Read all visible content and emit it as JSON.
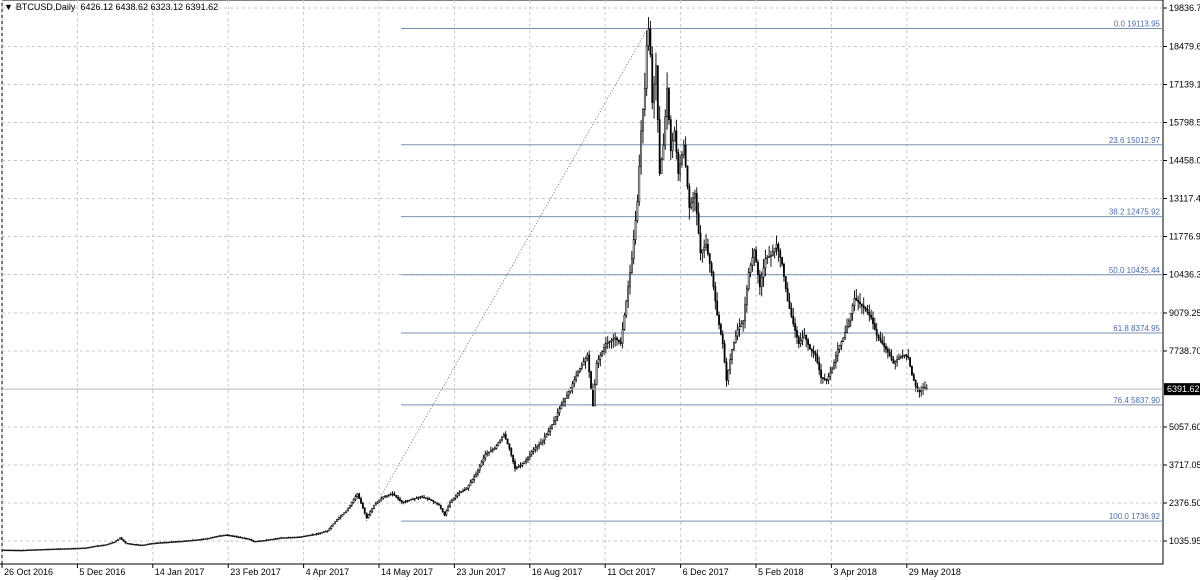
{
  "header": {
    "symbol": "BTCUSD,Daily",
    "ohlc": "6426.12 6438.62 6323.12 6391.62"
  },
  "chart_data": {
    "type": "candlestick",
    "symbol": "BTCUSD",
    "timeframe": "Daily",
    "current_price": "6391.62",
    "y_ticks": [
      "19836.75",
      "18479.65",
      "17139.10",
      "15798.55",
      "14458.00",
      "13117.45",
      "11776.90",
      "10436.35",
      "9079.25",
      "7738.70",
      "6391.62",
      "5057.60",
      "3717.05",
      "2376.50",
      "1035.95"
    ],
    "ylim": [
      500,
      20100
    ],
    "x_ticks": [
      "26 Oct 2016",
      "5 Dec 2016",
      "14 Jan 2017",
      "23 Feb 2017",
      "4 Apr 2017",
      "14 May 2017",
      "23 Jun 2017",
      "16 Aug 2017",
      "11 Oct 2017",
      "6 Dec 2017",
      "5 Feb 2018",
      "3 Apr 2018",
      "29 May 2018"
    ],
    "fib_levels": [
      {
        "label": "0.0 19113.95",
        "value": 19113.95
      },
      {
        "label": "23.6 15012.97",
        "value": 15012.97
      },
      {
        "label": "38.2 12475.92",
        "value": 12475.92
      },
      {
        "label": "50.0 10425.44",
        "value": 10425.44
      },
      {
        "label": "61.8 8374.95",
        "value": 8374.95
      },
      {
        "label": "76.4 5837.90",
        "value": 5837.9
      },
      {
        "label": "100.0 1736.92",
        "value": 1736.92
      }
    ],
    "trendline": {
      "from": [
        196,
        1736.92
      ],
      "to": [
        292,
        19113.95
      ]
    },
    "grid": true,
    "colors": {
      "fib": "#7892b4",
      "fib_text": "#4a6ea8",
      "grid": "#c8c8c8",
      "candle": "#000000",
      "price_tag_bg": "#000000",
      "price_tag_text": "#ffffff"
    },
    "price_path": [
      [
        0,
        720
      ],
      [
        10,
        710
      ],
      [
        20,
        740
      ],
      [
        30,
        760
      ],
      [
        40,
        780
      ],
      [
        45,
        800
      ],
      [
        50,
        860
      ],
      [
        55,
        900
      ],
      [
        60,
        1000
      ],
      [
        63,
        1150
      ],
      [
        66,
        960
      ],
      [
        70,
        920
      ],
      [
        75,
        890
      ],
      [
        80,
        950
      ],
      [
        85,
        980
      ],
      [
        90,
        1000
      ],
      [
        100,
        1050
      ],
      [
        110,
        1120
      ],
      [
        115,
        1200
      ],
      [
        120,
        1250
      ],
      [
        125,
        1200
      ],
      [
        128,
        1160
      ],
      [
        132,
        1110
      ],
      [
        135,
        1020
      ],
      [
        140,
        1050
      ],
      [
        150,
        1150
      ],
      [
        160,
        1180
      ],
      [
        170,
        1300
      ],
      [
        175,
        1400
      ],
      [
        180,
        1800
      ],
      [
        185,
        2100
      ],
      [
        188,
        2400
      ],
      [
        191,
        2700
      ],
      [
        194,
        2200
      ],
      [
        196,
        1850
      ],
      [
        200,
        2300
      ],
      [
        205,
        2600
      ],
      [
        210,
        2700
      ],
      [
        215,
        2400
      ],
      [
        220,
        2500
      ],
      [
        225,
        2600
      ],
      [
        230,
        2500
      ],
      [
        235,
        2300
      ],
      [
        238,
        1950
      ],
      [
        241,
        2400
      ],
      [
        245,
        2700
      ],
      [
        250,
        2900
      ],
      [
        255,
        3400
      ],
      [
        260,
        4100
      ],
      [
        265,
        4300
      ],
      [
        270,
        4800
      ],
      [
        273,
        4300
      ],
      [
        276,
        3600
      ],
      [
        279,
        3700
      ],
      [
        282,
        3900
      ],
      [
        285,
        4200
      ],
      [
        290,
        4500
      ],
      [
        295,
        5000
      ],
      [
        300,
        5700
      ],
      [
        305,
        6300
      ],
      [
        310,
        7000
      ],
      [
        315,
        7600
      ],
      [
        318,
        5800
      ],
      [
        320,
        7300
      ],
      [
        325,
        8000
      ],
      [
        330,
        8200
      ],
      [
        333,
        8000
      ],
      [
        336,
        9500
      ],
      [
        339,
        11000
      ],
      [
        342,
        13000
      ],
      [
        344,
        15500
      ],
      [
        346,
        17000
      ],
      [
        347,
        18500
      ],
      [
        348,
        19100
      ],
      [
        349,
        18200
      ],
      [
        350,
        16500
      ],
      [
        352,
        17800
      ],
      [
        354,
        14000
      ],
      [
        356,
        15000
      ],
      [
        358,
        17000
      ],
      [
        360,
        14800
      ],
      [
        362,
        15500
      ],
      [
        364,
        14000
      ],
      [
        367,
        15000
      ],
      [
        370,
        12800
      ],
      [
        373,
        13300
      ],
      [
        376,
        11200
      ],
      [
        379,
        11500
      ],
      [
        382,
        10500
      ],
      [
        385,
        9000
      ],
      [
        388,
        8000
      ],
      [
        390,
        6700
      ],
      [
        393,
        7800
      ],
      [
        396,
        8500
      ],
      [
        399,
        8800
      ],
      [
        402,
        10500
      ],
      [
        405,
        11300
      ],
      [
        408,
        10000
      ],
      [
        411,
        11000
      ],
      [
        414,
        11100
      ],
      [
        417,
        11500
      ],
      [
        420,
        10800
      ],
      [
        423,
        9500
      ],
      [
        426,
        8700
      ],
      [
        429,
        8000
      ],
      [
        432,
        8300
      ],
      [
        435,
        7800
      ],
      [
        438,
        7600
      ],
      [
        441,
        6800
      ],
      [
        444,
        6700
      ],
      [
        447,
        7100
      ],
      [
        450,
        7800
      ],
      [
        453,
        8200
      ],
      [
        456,
        8800
      ],
      [
        459,
        9600
      ],
      [
        462,
        9400
      ],
      [
        465,
        9200
      ],
      [
        468,
        8900
      ],
      [
        471,
        8300
      ],
      [
        474,
        8000
      ],
      [
        477,
        7700
      ],
      [
        480,
        7300
      ],
      [
        483,
        7500
      ],
      [
        486,
        7600
      ],
      [
        488,
        7500
      ],
      [
        490,
        6900
      ],
      [
        492,
        6500
      ],
      [
        494,
        6300
      ],
      [
        496,
        6450
      ],
      [
        498,
        6391.62
      ]
    ]
  }
}
